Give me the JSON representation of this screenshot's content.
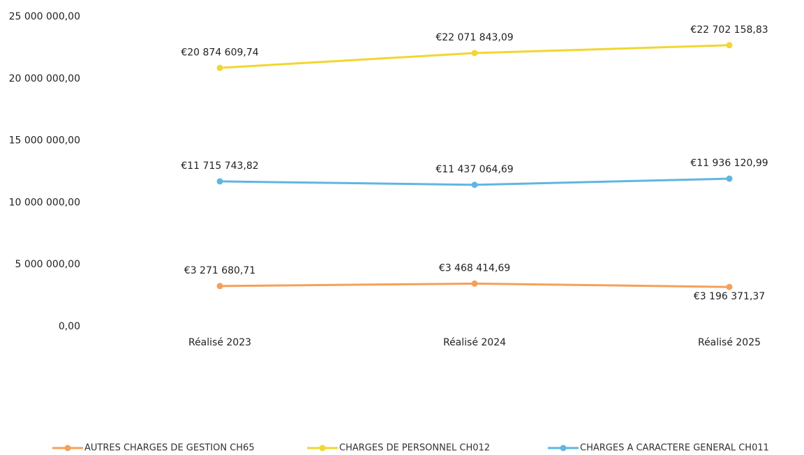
{
  "chart_data": {
    "type": "line",
    "categories": [
      "Réalisé 2023",
      "Réalisé 2024",
      "Réalisé 2025"
    ],
    "series": [
      {
        "name": "AUTRES CHARGES DE GESTION CH65",
        "color": "#f5a05a",
        "values": [
          3271680.71,
          3468414.69,
          3196371.37
        ],
        "value_labels": [
          "€3 271 680,71",
          "€3 468 414,69",
          "€3 196 371,37"
        ]
      },
      {
        "name": "CHARGES DE PERSONNEL CH012",
        "color": "#f2d631",
        "values": [
          20874609.74,
          22071843.09,
          22702158.83
        ],
        "value_labels": [
          "€20 874 609,74",
          "€22 071 843,09",
          "€22 702 158,83"
        ]
      },
      {
        "name": "CHARGES A CARACTERE GENERAL CH011",
        "color": "#5fb6e2",
        "values": [
          11715743.82,
          11437064.69,
          11936120.99
        ],
        "value_labels": [
          "€11 715 743,82",
          "€11 437 064,69",
          "€11 936 120,99"
        ]
      }
    ],
    "ylim": [
      0,
      25000000
    ],
    "yticks": [
      {
        "value": 0,
        "label": "0,00"
      },
      {
        "value": 5000000,
        "label": "5 000 000,00"
      },
      {
        "value": 10000000,
        "label": "10 000 000,00"
      },
      {
        "value": 15000000,
        "label": "15 000 000,00"
      },
      {
        "value": 20000000,
        "label": "20 000 000,00"
      },
      {
        "value": 25000000,
        "label": "25 000 000,00"
      }
    ],
    "grid": false,
    "legend": "bottom"
  }
}
